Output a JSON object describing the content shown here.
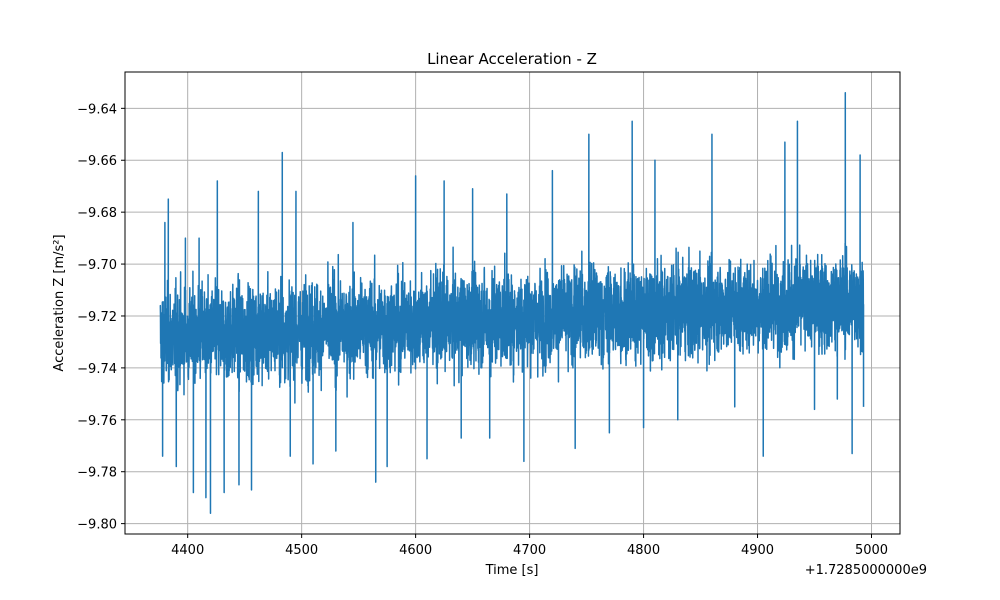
{
  "chart_data": {
    "type": "line",
    "title": "Linear Acceleration - Z",
    "xlabel": "Time [s]",
    "ylabel": "Acceleration Z [m/s²]",
    "x_offset_label": "+1.7285000000e9",
    "xlim": [
      4345,
      5025
    ],
    "ylim": [
      -9.804,
      -9.626
    ],
    "x_ticks": [
      4400,
      4500,
      4600,
      4700,
      4800,
      4900,
      5000
    ],
    "x_tick_labels": [
      "4400",
      "4500",
      "4600",
      "4700",
      "4800",
      "4900",
      "5000"
    ],
    "y_ticks": [
      -9.8,
      -9.78,
      -9.76,
      -9.74,
      -9.72,
      -9.7,
      -9.68,
      -9.66,
      -9.64
    ],
    "y_tick_labels": [
      "−9.80",
      "−9.78",
      "−9.76",
      "−9.74",
      "−9.72",
      "−9.70",
      "−9.68",
      "−9.66",
      "−9.64"
    ],
    "grid": true,
    "series": [
      {
        "color": "#1f77b4",
        "x_range": [
          4376,
          4993
        ],
        "trend_center": [
          -9.728,
          -9.714
        ],
        "typical_band": [
          -9.755,
          -9.683
        ],
        "observed_min": -9.796,
        "observed_max": -9.634,
        "points": [
          [
            4376,
            -9.716
          ],
          [
            4378,
            -9.774
          ],
          [
            4380,
            -9.684
          ],
          [
            4383,
            -9.675
          ],
          [
            4390,
            -9.778
          ],
          [
            4398,
            -9.69
          ],
          [
            4405,
            -9.788
          ],
          [
            4410,
            -9.69
          ],
          [
            4416,
            -9.79
          ],
          [
            4420,
            -9.796
          ],
          [
            4426,
            -9.668
          ],
          [
            4432,
            -9.788
          ],
          [
            4445,
            -9.785
          ],
          [
            4456,
            -9.787
          ],
          [
            4462,
            -9.672
          ],
          [
            4483,
            -9.657
          ],
          [
            4490,
            -9.774
          ],
          [
            4495,
            -9.672
          ],
          [
            4510,
            -9.777
          ],
          [
            4530,
            -9.772
          ],
          [
            4545,
            -9.684
          ],
          [
            4565,
            -9.784
          ],
          [
            4575,
            -9.778
          ],
          [
            4600,
            -9.666
          ],
          [
            4610,
            -9.775
          ],
          [
            4625,
            -9.668
          ],
          [
            4640,
            -9.767
          ],
          [
            4650,
            -9.671
          ],
          [
            4665,
            -9.767
          ],
          [
            4680,
            -9.673
          ],
          [
            4695,
            -9.776
          ],
          [
            4720,
            -9.664
          ],
          [
            4740,
            -9.771
          ],
          [
            4752,
            -9.65
          ],
          [
            4770,
            -9.765
          ],
          [
            4790,
            -9.645
          ],
          [
            4800,
            -9.763
          ],
          [
            4810,
            -9.66
          ],
          [
            4830,
            -9.76
          ],
          [
            4860,
            -9.65
          ],
          [
            4880,
            -9.755
          ],
          [
            4905,
            -9.774
          ],
          [
            4924,
            -9.653
          ],
          [
            4935,
            -9.645
          ],
          [
            4950,
            -9.756
          ],
          [
            4970,
            -9.752
          ],
          [
            4977,
            -9.634
          ],
          [
            4983,
            -9.773
          ],
          [
            4990,
            -9.658
          ],
          [
            4993,
            -9.755
          ]
        ]
      }
    ]
  }
}
